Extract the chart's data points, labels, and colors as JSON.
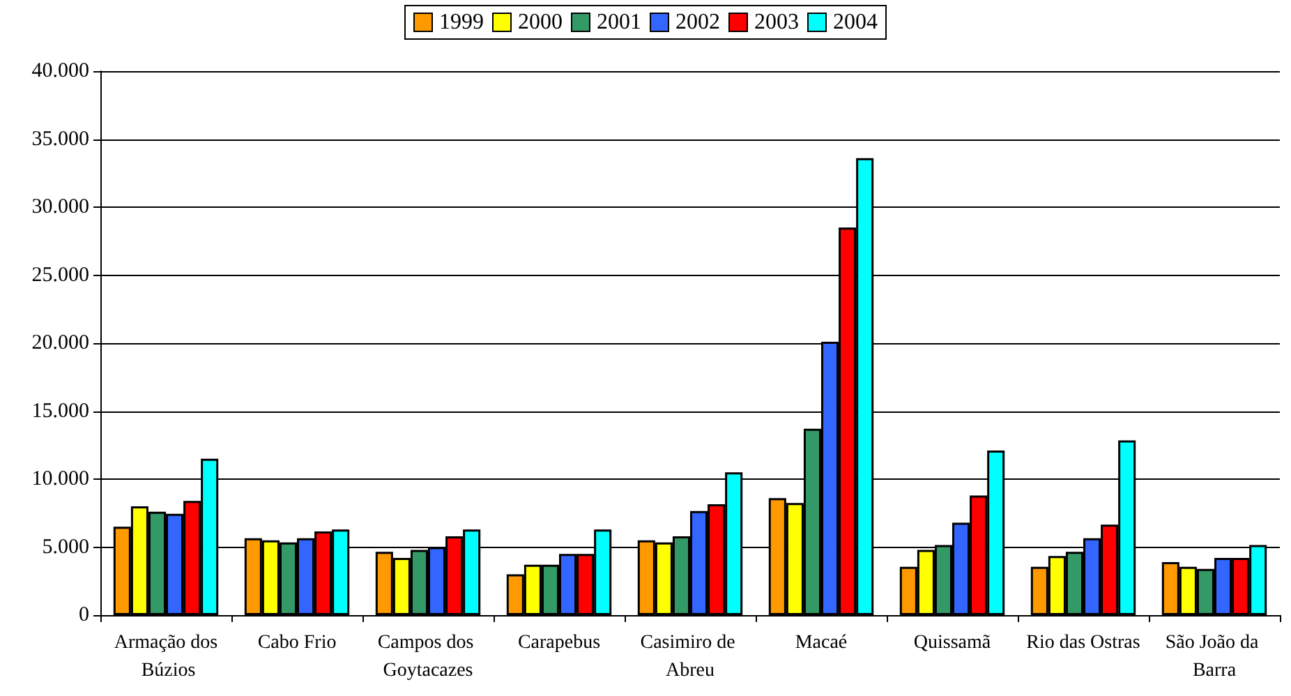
{
  "chart_data": {
    "type": "bar",
    "categories": [
      "Armação dos Búzios",
      "Cabo Frio",
      "Campos dos Goytacazes",
      "Carapebus",
      "Casimiro de Abreu",
      "Macaé",
      "Quissamã",
      "Rio das Ostras",
      "São João da Barra"
    ],
    "series": [
      {
        "name": "1999",
        "color": "#ff9900",
        "values": [
          6500,
          5650,
          4650,
          3000,
          5500,
          8600,
          3550,
          3550,
          3900
        ]
      },
      {
        "name": "2000",
        "color": "#ffff00",
        "values": [
          8000,
          5500,
          4200,
          3700,
          5350,
          8250,
          4800,
          4350,
          3550
        ]
      },
      {
        "name": "2001",
        "color": "#339966",
        "values": [
          7600,
          5350,
          4800,
          3700,
          5800,
          13700,
          5150,
          4650,
          3400
        ]
      },
      {
        "name": "2002",
        "color": "#3366ff",
        "values": [
          7450,
          5650,
          5000,
          4500,
          7650,
          20100,
          6800,
          5650,
          4200
        ]
      },
      {
        "name": "2003",
        "color": "#ff0000",
        "values": [
          8400,
          6150,
          5800,
          4500,
          8150,
          28500,
          8800,
          6650,
          4200
        ]
      },
      {
        "name": "2004",
        "color": "#00ffff",
        "values": [
          11500,
          6300,
          6300,
          6300,
          10500,
          33600,
          12100,
          12850,
          5150
        ]
      }
    ],
    "ylim": [
      0,
      40000
    ],
    "yticks": [
      {
        "value": 0,
        "label": "0"
      },
      {
        "value": 5000,
        "label": "5.000"
      },
      {
        "value": 10000,
        "label": "10.000"
      },
      {
        "value": 15000,
        "label": "15.000"
      },
      {
        "value": 20000,
        "label": "20.000"
      },
      {
        "value": 25000,
        "label": "25.000"
      },
      {
        "value": 30000,
        "label": "30.000"
      },
      {
        "value": 35000,
        "label": "35.000"
      },
      {
        "value": 40000,
        "label": "40.000"
      }
    ],
    "grid": "y",
    "legend": "top"
  }
}
